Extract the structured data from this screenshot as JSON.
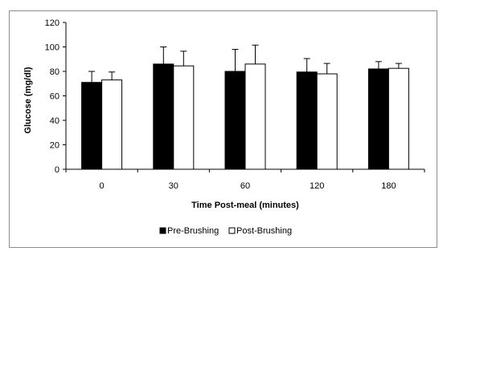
{
  "chart_data": {
    "type": "bar",
    "categories": [
      "0",
      "30",
      "60",
      "120",
      "180"
    ],
    "series": [
      {
        "name": "Pre-Brushing",
        "values": [
          71,
          86,
          80,
          79.5,
          82
        ],
        "errors": [
          9,
          14,
          18,
          11,
          6
        ],
        "color": "#000000"
      },
      {
        "name": "Post-Brushing",
        "values": [
          73,
          84.5,
          86,
          78,
          82.5
        ],
        "errors": [
          6.5,
          12,
          15.5,
          8.5,
          4
        ],
        "color": "#ffffff"
      }
    ],
    "xlabel": "Time Post-meal (minutes)",
    "ylabel": "Glucose (mg/dl)",
    "ylim": [
      0,
      120
    ],
    "yticks": [
      "0",
      "20",
      "40",
      "60",
      "80",
      "100",
      "120"
    ],
    "grid": false,
    "legend_position": "bottom"
  }
}
